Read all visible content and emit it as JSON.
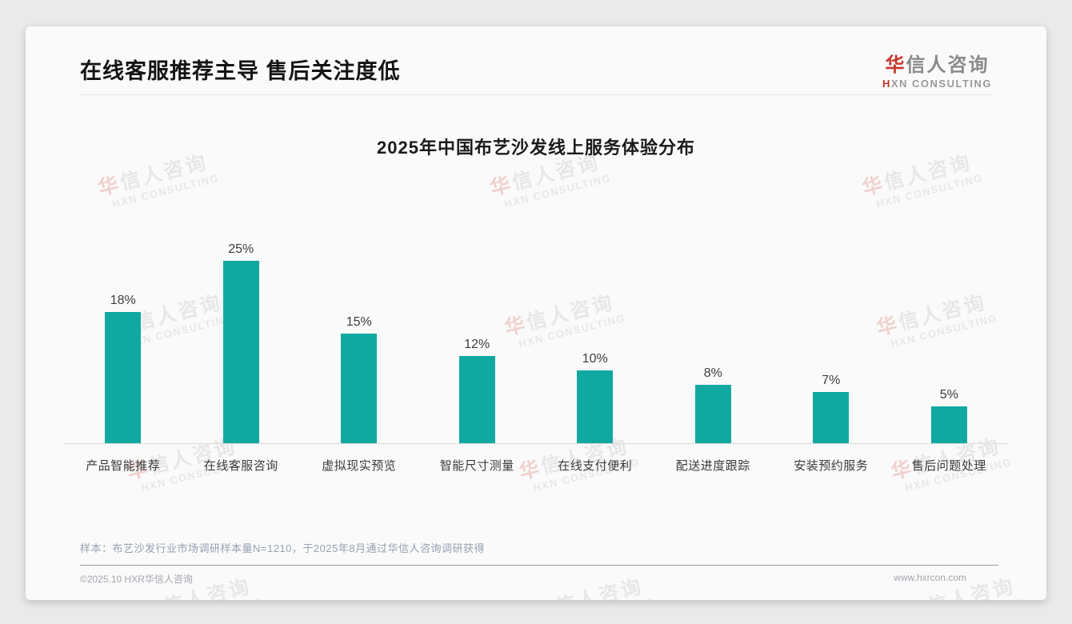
{
  "page": {
    "title": "在线客服推荐主导 售后关注度低",
    "footnote": "样本：布艺沙发行业市场调研样本量N=1210，于2025年8月通过华信人咨询调研获得",
    "footer_left": "©2025.10 HXR华信人咨询",
    "footer_right": "www.hxrcon.com"
  },
  "logo": {
    "cn_first": "华",
    "cn_rest": "信人咨询",
    "en_first": "H",
    "en_rest": "XN CONSULTING"
  },
  "watermark": {
    "line1_first": "华",
    "line1_rest": "信人咨询",
    "line2": "HXN CONSULTING"
  },
  "colors": {
    "brand_red": "#c5352b",
    "bar_teal": "#10a9a1",
    "axis_line": "#d9d9d9"
  },
  "chart_data": {
    "type": "bar",
    "title": "2025年中国布艺沙发线上服务体验分布",
    "categories": [
      "产品智能推荐",
      "在线客服咨询",
      "虚拟现实预览",
      "智能尺寸测量",
      "在线支付便利",
      "配送进度跟踪",
      "安装预约服务",
      "售后问题处理"
    ],
    "values": [
      18,
      25,
      15,
      12,
      10,
      8,
      7,
      5
    ],
    "labels": [
      "18%",
      "25%",
      "15%",
      "12%",
      "10%",
      "8%",
      "7%",
      "5%"
    ],
    "unit": "%",
    "ylim": [
      0,
      25
    ],
    "bar_color": "#10a9a1",
    "grid": false,
    "legend": "none",
    "value_labels_position": "above-bar"
  }
}
